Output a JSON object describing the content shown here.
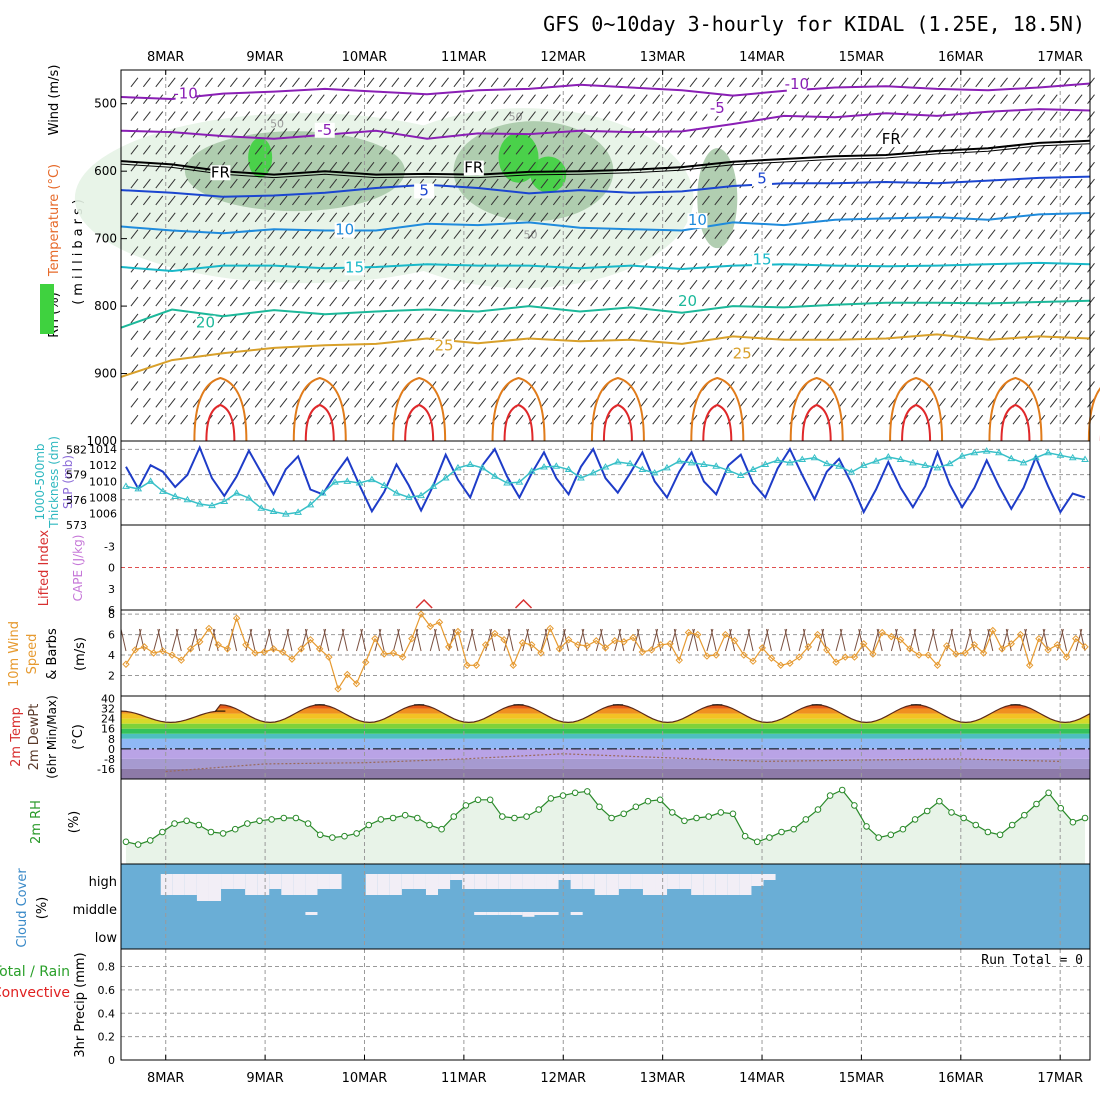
{
  "title": "GFS 0~10day 3-hourly for KIDAL (1.25E, 18.5N)",
  "colors": {
    "frame": "#000000",
    "grid": "#9a9a9a",
    "rh_fill_light": "#e6f3e6",
    "rh_fill_mid": "#a9c9a9",
    "rh_fill_dark": "#3fd23f",
    "temp_neg10": "#8a1fb5",
    "temp_neg5": "#8a1fb5",
    "temp_fr": "#000000",
    "temp_5": "#1b45d0",
    "temp_10": "#1f8bdc",
    "temp_15": "#18b8c8",
    "temp_20": "#1cb89a",
    "temp_25": "#d8a02a",
    "temp_30": "#e07b1a",
    "temp_35": "#e0282a",
    "slp_line": "#1e3cc8",
    "thickness_line": "#38c0c8",
    "lifted_zero": "#e05050",
    "cape": "#d83030",
    "wind_line": "#e69a30",
    "wind_barb": "#7a5040",
    "rh2m_line": "#2a8a2a",
    "rh2m_fill": "#e8f3e8",
    "cloud_bg": "#6aaed6",
    "cloud_clear": "#f2eef6"
  },
  "labels": {
    "wind_y": "Wind (m/s)",
    "temp_y": "Temperature (°C)",
    "rh_y": "RH (%)",
    "pressure_y": "(millibars)",
    "thickness_y": "Thickness (dm)",
    "thickness_prefix": "1000-500mb",
    "slp_y": "SLP (mb)",
    "lifted_y": "Lifted Index",
    "cape_y": "CAPE (J/kg)",
    "wind10_a": "10m Wind",
    "wind10_b": "Speed",
    "wind10_c": "& Barbs",
    "wind10_unit": "(m/s)",
    "t2m_a": "2m Temp",
    "t2m_b": "2m DewPt",
    "t2m_c": "(6hr Min/Max)",
    "t2m_unit": "(°C)",
    "rh2m_a": "2m RH",
    "rh2m_unit": "(%)",
    "cloud_a": "Cloud Cover",
    "cloud_unit": "(%)",
    "precip_a": "Total / Rain",
    "precip_b": "Convective",
    "precip_c": "3hr Precip (mm)",
    "run_total": "Run Total = 0"
  },
  "chart_data": {
    "type": "line",
    "dates": [
      "8MAR",
      "9MAR",
      "10MAR",
      "11MAR",
      "12MAR",
      "13MAR",
      "14MAR",
      "15MAR",
      "16MAR",
      "17MAR"
    ],
    "x_range_days": [
      -0.45,
      9.3
    ],
    "panels": {
      "upper_air": {
        "y_axis": "pressure (mb)",
        "ylim": [
          1000,
          450
        ],
        "yticks": [
          500,
          600,
          700,
          800,
          900,
          1000
        ],
        "contour_labels": [
          "-10",
          "-10",
          "-5",
          "-5",
          "FR",
          "FR",
          "FR",
          "5",
          "5",
          "10",
          "10",
          "15",
          "15",
          "20",
          "20",
          "25",
          "25"
        ],
        "rh_labels": [
          "50",
          "50",
          "50"
        ],
        "isotherms": [
          {
            "label": "-10",
            "color_key": "temp_neg10",
            "values": [
              490,
              493,
              485,
              482,
              478,
              482,
              486,
              480,
              478,
              472,
              476,
              480,
              488,
              481,
              476,
              474,
              478,
              480,
              476,
              470
            ]
          },
          {
            "label": "-5",
            "color_key": "temp_neg5",
            "values": [
              540,
              542,
              548,
              552,
              546,
              540,
              552,
              544,
              545,
              540,
              542,
              541,
              530,
              518,
              520,
              514,
              518,
              512,
              508,
              510
            ]
          },
          {
            "label": "FR",
            "color_key": "temp_fr",
            "values": [
              585,
              590,
              600,
              605,
              600,
              605,
              604,
              605,
              601,
              600,
              598,
              594,
              586,
              582,
              578,
              576,
              570,
              566,
              558,
              555
            ]
          },
          {
            "label": "5",
            "color_key": "temp_5",
            "values": [
              628,
              632,
              638,
              636,
              632,
              625,
              620,
              625,
              633,
              628,
              632,
              630,
              622,
              618,
              618,
              616,
              618,
              614,
              610,
              608
            ]
          },
          {
            "label": "10",
            "color_key": "temp_10",
            "values": [
              682,
              688,
              692,
              686,
              688,
              688,
              678,
              680,
              676,
              684,
              686,
              688,
              676,
              680,
              672,
              670,
              668,
              672,
              664,
              662
            ]
          },
          {
            "label": "15",
            "color_key": "temp_15",
            "values": [
              742,
              748,
              740,
              740,
              744,
              742,
              738,
              740,
              740,
              744,
              740,
              745,
              740,
              738,
              740,
              741,
              740,
              738,
              736,
              738
            ]
          },
          {
            "label": "20",
            "color_key": "temp_20",
            "values": [
              832,
              805,
              815,
              806,
              812,
              808,
              805,
              808,
              800,
              808,
              802,
              810,
              800,
              802,
              798,
              795,
              795,
              796,
              794,
              792
            ]
          },
          {
            "label": "25",
            "color_key": "temp_25",
            "values": [
              905,
              880,
              870,
              862,
              858,
              856,
              848,
              855,
              848,
              852,
              850,
              856,
              845,
              850,
              850,
              848,
              842,
              850,
              845,
              848
            ]
          }
        ]
      },
      "slp": {
        "ylabel": "SLP (mb)",
        "ylim": [
          1004.6,
          1015.0
        ],
        "yticks": [
          1006,
          1008,
          1010,
          1012,
          1014
        ],
        "values": [
          1011.8,
          1009.1,
          1012.0,
          1011.2,
          1009.3,
          1010.8,
          1014.2,
          1010.4,
          1008.2,
          1010.6,
          1013.8,
          1011.1,
          1008.4,
          1011.5,
          1013.1,
          1009.0,
          1008.4,
          1010.8,
          1012.9,
          1009.5,
          1006.3,
          1008.7,
          1012.1,
          1009.5,
          1006.4,
          1009.5,
          1013.3,
          1010.2,
          1008.0,
          1012.0,
          1014.0,
          1010.6,
          1008.0,
          1011.0,
          1013.6,
          1010.4,
          1008.4,
          1011.8,
          1014.0,
          1010.4,
          1008.6,
          1011.0,
          1013.6,
          1010.0,
          1008.0,
          1011.2,
          1013.6,
          1010.0,
          1008.4,
          1012.0,
          1013.3,
          1009.8,
          1008.0,
          1011.6,
          1014.0,
          1010.8,
          1007.8,
          1011.2,
          1012.8,
          1009.8,
          1006.2,
          1009.0,
          1012.4,
          1009.2,
          1006.8,
          1009.4,
          1013.6,
          1009.6,
          1006.8,
          1009.2,
          1012.6,
          1009.4,
          1006.6,
          1009.2,
          1013.0,
          1009.4,
          1006.2,
          1008.5,
          1008.0
        ]
      },
      "thickness": {
        "ylabel": "Thickness (dm)",
        "ylim": [
          573,
          583
        ],
        "yticks": [
          573,
          576,
          579,
          582
        ],
        "values": [
          577.6,
          577.3,
          578.2,
          577.0,
          576.4,
          576.0,
          575.5,
          575.3,
          575.8,
          576.8,
          576.2,
          575.0,
          574.6,
          574.3,
          574.5,
          575.4,
          576.8,
          578.1,
          578.2,
          578.0,
          578.4,
          577.7,
          576.8,
          576.3,
          576.5,
          577.6,
          578.6,
          579.8,
          580.2,
          579.8,
          578.8,
          578.0,
          578.1,
          579.4,
          579.9,
          580.0,
          579.6,
          578.6,
          579.2,
          579.9,
          580.5,
          580.3,
          579.6,
          579.2,
          579.8,
          580.6,
          580.4,
          580.2,
          580.0,
          579.5,
          578.9,
          579.6,
          580.2,
          580.7,
          580.4,
          580.8,
          581.0,
          580.3,
          580.0,
          579.3,
          580.1,
          580.6,
          581.1,
          580.8,
          580.4,
          580.1,
          579.8,
          580.3,
          581.2,
          581.6,
          581.8,
          581.6,
          580.9,
          580.4,
          581.0,
          581.6,
          581.3,
          581.0,
          580.8
        ]
      },
      "lifted_cape": {
        "ylabel": "Lifted Index",
        "y2label": "CAPE (J/kg)",
        "ylim": [
          6,
          -6
        ],
        "yticks": [
          -3,
          0,
          3,
          6
        ],
        "zero_line": 0,
        "cape_spikes_days": [
          2.6,
          3.6
        ]
      },
      "wind10m": {
        "ylabel": "(m/s)",
        "ylim": [
          0,
          8.4
        ],
        "yticks": [
          2,
          4,
          6,
          8
        ],
        "values": [
          3.1,
          4.5,
          4.8,
          4.2,
          4.4,
          4.0,
          3.5,
          4.6,
          5.3,
          6.6,
          5.0,
          4.6,
          7.6,
          5.0,
          4.2,
          4.3,
          4.6,
          4.3,
          3.6,
          4.6,
          5.5,
          4.6,
          3.8,
          0.7,
          2.1,
          1.2,
          3.3,
          5.6,
          4.1,
          4.2,
          3.8,
          5.6,
          8.0,
          6.8,
          7.2,
          4.8,
          6.3,
          3.0,
          3.0,
          5.0,
          6.1,
          5.5,
          3.0,
          5.2,
          5.0,
          4.2,
          6.6,
          4.6,
          5.5,
          5.0,
          4.9,
          5.4,
          4.7,
          5.4,
          5.3,
          5.7,
          4.3,
          4.5,
          5.0,
          5.1,
          3.5,
          6.2,
          6.0,
          3.9,
          4.0,
          6.0,
          5.4,
          4.0,
          3.4,
          4.7,
          3.7,
          3.0,
          3.2,
          3.8,
          4.8,
          6.0,
          4.5,
          3.3,
          3.8,
          3.8,
          5.1,
          4.1,
          6.2,
          5.8,
          5.5,
          4.6,
          4.0,
          4.0,
          3.0,
          4.9,
          4.1,
          4.2,
          5.0,
          4.2,
          6.4,
          4.6,
          5.1,
          6.0,
          3.0,
          5.6,
          4.5,
          5.0,
          3.8,
          5.6,
          4.8
        ]
      },
      "temp2m": {
        "ylabel": "(°C)",
        "ylim": [
          -24,
          42
        ],
        "yticks": [
          -16,
          -8,
          0,
          8,
          16,
          24,
          32,
          40
        ],
        "max_temps": [
          30,
          35,
          35,
          35,
          35,
          35,
          35,
          35,
          35,
          35
        ],
        "min_temps": [
          21,
          21,
          21,
          21,
          21,
          21,
          21,
          21,
          21,
          21
        ],
        "dewpoints": [
          -18,
          -12,
          -11,
          -8,
          -4,
          -7,
          -10,
          -9,
          -8,
          -10
        ]
      },
      "rh2m": {
        "ylabel": "(%)",
        "values": [
          13,
          11,
          14,
          20,
          26,
          28,
          25,
          20,
          19,
          22,
          26,
          28,
          29,
          30,
          30,
          26,
          18,
          16,
          17,
          19,
          25,
          29,
          30,
          32,
          30,
          25,
          22,
          31,
          39,
          43,
          43,
          31,
          30,
          31,
          36,
          44,
          46,
          48,
          49,
          38,
          30,
          33,
          38,
          42,
          43,
          34,
          28,
          30,
          31,
          34,
          33,
          17,
          13,
          16,
          20,
          22,
          29,
          36,
          46,
          50,
          39,
          24,
          16,
          18,
          22,
          29,
          35,
          42,
          34,
          30,
          25,
          20,
          18,
          25,
          32,
          40,
          48,
          37,
          27,
          30
        ]
      },
      "cloud_cover": {
        "ylabel": "(%)",
        "levels": [
          "high",
          "middle",
          "low"
        ],
        "high_cover": [
          0.35,
          0.35,
          0.35,
          0.45,
          0.45,
          0.25,
          0.25,
          0.35,
          0.35,
          0.25,
          0.35,
          0.35,
          0.35,
          0.25,
          0.25,
          0.0,
          0.0,
          0.35,
          0.35,
          0.35,
          0.25,
          0.25,
          0.35,
          0.25,
          0.1,
          0.25,
          0.25,
          0.25,
          0.25,
          0.25,
          0.25,
          0.25,
          0.25,
          0.1,
          0.25,
          0.25,
          0.35,
          0.35,
          0.25,
          0.25,
          0.35,
          0.35,
          0.25,
          0.25,
          0.35,
          0.35,
          0.35,
          0.35,
          0.35,
          0.2,
          0.1,
          0.0,
          0.0,
          0.0
        ],
        "middle_cover": [
          0.0,
          0.0,
          0.0,
          0.0,
          0.0,
          0.0,
          0.0,
          0.0,
          0.0,
          0.0,
          0.0,
          0.0,
          0.05,
          0.0,
          0.0,
          0.0,
          0.0,
          0.0,
          0.0,
          0.0,
          0.0,
          0.0,
          0.0,
          0.0,
          0.0,
          0.0,
          0.05,
          0.05,
          0.05,
          0.05,
          0.08,
          0.05,
          0.05,
          0.0,
          0.05,
          0.0,
          0.0,
          0.0,
          0.0,
          0.0,
          0.0,
          0.0,
          0.0,
          0.0,
          0.0,
          0.0,
          0.0,
          0.0,
          0.0,
          0.0,
          0.0,
          0.0,
          0.0,
          0.0
        ]
      },
      "precip": {
        "ylabel": "3hr Precip (mm)",
        "ylim": [
          0,
          0.95
        ],
        "yticks": [
          0,
          0.2,
          0.4,
          0.6,
          0.8
        ],
        "values": []
      }
    }
  }
}
